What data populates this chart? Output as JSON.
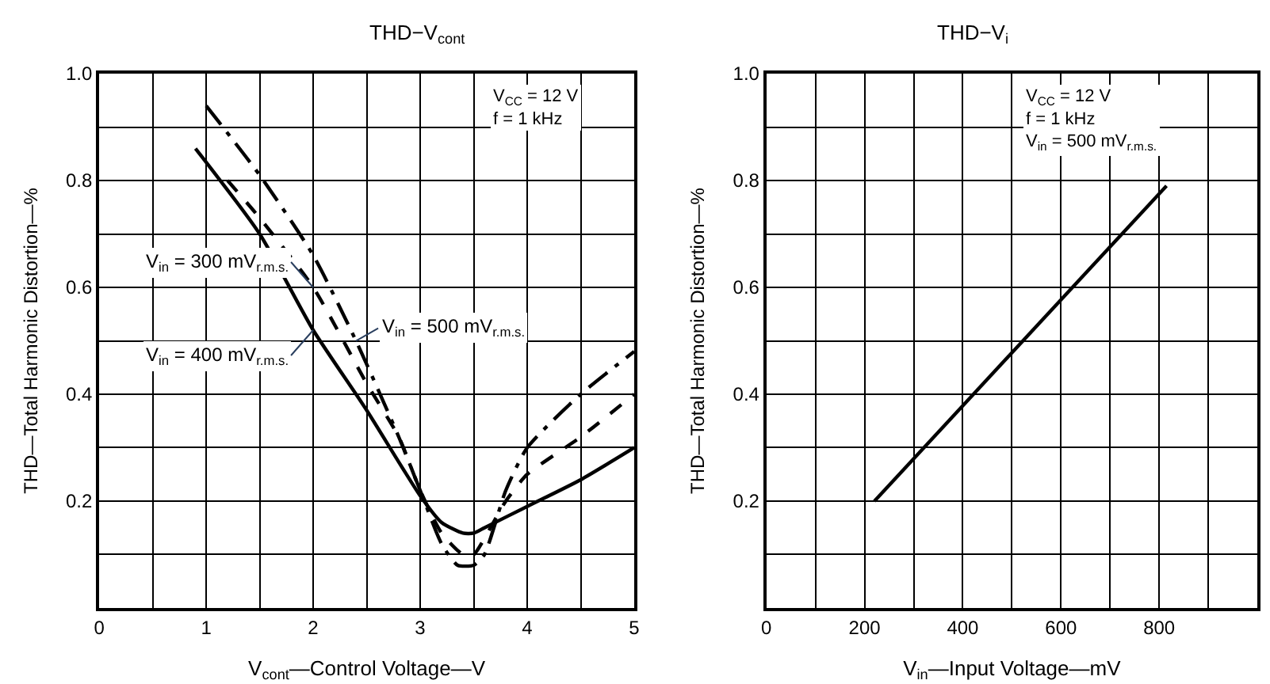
{
  "chart_data": [
    {
      "type": "line",
      "title": "THD−V$_{cont}$",
      "xlabel": "V$_{cont}$—Control Voltage—V",
      "ylabel": "THD—Total Harmonic Distortion—%",
      "xlim": [
        0,
        5
      ],
      "ylim": [
        0,
        1.0
      ],
      "xticks": [
        0,
        {
          "value": 0.5,
          "label": null
        },
        1,
        {
          "value": 1.5,
          "label": null
        },
        2,
        {
          "value": 2.5,
          "label": null
        },
        3,
        {
          "value": 3.5,
          "label": null
        },
        4,
        {
          "value": 4.5,
          "label": null
        },
        5
      ],
      "yticks": [
        {
          "value": 0.1,
          "label": null
        },
        0.2,
        {
          "value": 0.3,
          "label": null
        },
        0.4,
        {
          "value": 0.5,
          "label": null
        },
        0.6,
        {
          "value": 0.7,
          "label": null
        },
        0.8,
        {
          "value": 0.9,
          "label": null
        },
        {
          "value": 1.0,
          "label": "1.0"
        }
      ],
      "grid": true,
      "annotations": [
        "V$_{CC}$ = 12 V\nf = 1 kHz"
      ],
      "series": [
        {
          "name": "V$_{in}$ = 500 mV$_{r.m.s.}$",
          "color": "#000000",
          "line_style": "dashed",
          "x": [
            1.0,
            1.5,
            2.0,
            2.4,
            2.8,
            3.0,
            3.2,
            3.35,
            3.5,
            3.6,
            3.8,
            4.0,
            4.5,
            5.0
          ],
          "values": [
            0.94,
            0.81,
            0.66,
            0.5,
            0.32,
            0.22,
            0.12,
            0.08,
            0.08,
            0.1,
            0.22,
            0.3,
            0.4,
            0.48
          ]
        },
        {
          "name": "V$_{in}$ = 300 mV$_{r.m.s.}$",
          "color": "#000000",
          "line_style": "dotted",
          "x": [
            1.2,
            1.5,
            2.0,
            2.5,
            2.8,
            3.0,
            3.2,
            3.4,
            3.5,
            3.6,
            3.8,
            4.0,
            4.5,
            5.0
          ],
          "values": [
            0.8,
            0.73,
            0.6,
            0.42,
            0.32,
            0.22,
            0.14,
            0.1,
            0.1,
            0.13,
            0.2,
            0.25,
            0.32,
            0.4
          ]
        },
        {
          "name": "V$_{in}$ = 400 mV$_{r.m.s.}$",
          "color": "#000000",
          "line_style": "solid",
          "x": [
            0.9,
            1.5,
            2.0,
            2.5,
            3.0,
            3.2,
            3.4,
            3.5,
            3.6,
            4.0,
            4.5,
            5.0
          ],
          "values": [
            0.86,
            0.7,
            0.52,
            0.37,
            0.21,
            0.16,
            0.14,
            0.14,
            0.15,
            0.19,
            0.24,
            0.3
          ]
        }
      ]
    },
    {
      "type": "line",
      "title": "THD−V$_{i}$",
      "xlabel": "V$_{in}$—Input Voltage—mV",
      "ylabel": "THD—Total Harmonic Distortion—%",
      "xlim": [
        0,
        1000
      ],
      "ylim": [
        0,
        1.0
      ],
      "xticks": [
        0,
        {
          "value": 100,
          "label": null
        },
        200,
        {
          "value": 300,
          "label": null
        },
        400,
        {
          "value": 500,
          "label": null
        },
        600,
        {
          "value": 700,
          "label": null
        },
        800,
        {
          "value": 900,
          "label": null
        }
      ],
      "yticks": [
        {
          "value": 0.1,
          "label": null
        },
        0.2,
        {
          "value": 0.3,
          "label": null
        },
        0.4,
        {
          "value": 0.5,
          "label": null
        },
        0.6,
        {
          "value": 0.7,
          "label": null
        },
        0.8,
        {
          "value": 0.9,
          "label": null
        },
        {
          "value": 1.0,
          "label": "1.0"
        }
      ],
      "grid": true,
      "annotations": [
        "V$_{CC}$ = 12 V\nf = 1 kHz\nV$_{in}$ = 500 mV$_{r.m.s.}$"
      ],
      "series": [
        {
          "color": "#000000",
          "line_style": "solid",
          "x": [
            220,
            815
          ],
          "values": [
            0.2,
            0.79
          ]
        }
      ]
    }
  ]
}
